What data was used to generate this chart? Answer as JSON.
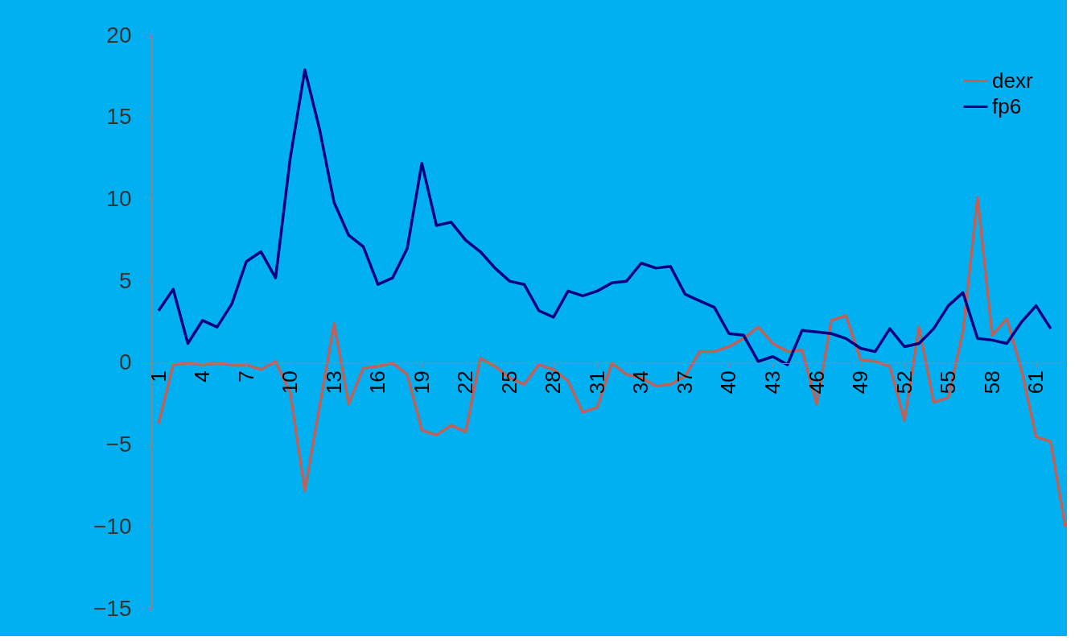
{
  "chart_data": {
    "type": "line",
    "categories": [
      "1",
      null,
      null,
      "4",
      null,
      null,
      "7",
      null,
      null,
      "10",
      null,
      null,
      "13",
      null,
      null,
      "16",
      null,
      null,
      "19",
      null,
      null,
      "22",
      null,
      null,
      "25",
      null,
      null,
      "28",
      null,
      null,
      "31",
      null,
      null,
      "34",
      null,
      null,
      "37",
      null,
      null,
      "40",
      null,
      null,
      "43",
      null,
      null,
      "46",
      null,
      null,
      "49",
      null,
      null,
      "52",
      null,
      null,
      "55",
      null,
      null,
      "58",
      null,
      null,
      "61",
      null,
      null
    ],
    "series": [
      {
        "name": "dexr",
        "color": "#c0605a",
        "values": [
          -3.7,
          -0.1,
          0.0,
          -0.1,
          0.0,
          -0.1,
          -0.1,
          -0.4,
          0.1,
          -1.8,
          -7.8,
          -2.7,
          2.4,
          -2.5,
          -0.3,
          -0.2,
          0.0,
          -0.7,
          -4.1,
          -4.4,
          -3.8,
          -4.2,
          0.3,
          -0.2,
          -0.9,
          -1.3,
          -0.1,
          -0.4,
          -1.1,
          -3.0,
          -2.7,
          0.0,
          -0.7,
          -0.9,
          -1.4,
          -1.3,
          -0.8,
          0.7,
          0.7,
          1.0,
          1.5,
          2.2,
          1.2,
          0.7,
          0.8,
          -2.5,
          2.6,
          2.9,
          0.2,
          0.1,
          -0.2,
          -3.5,
          2.2,
          -2.4,
          -2.1,
          1.9,
          10.1,
          1.7,
          2.7,
          -0.4,
          -4.5,
          -4.8,
          -10
        ]
      },
      {
        "name": "fp6",
        "color": "#000080",
        "values": [
          3.2,
          4.5,
          1.2,
          2.6,
          2.2,
          3.6,
          6.2,
          6.8,
          5.2,
          12.5,
          17.9,
          14.3,
          9.8,
          7.8,
          7.1,
          4.8,
          5.2,
          7.0,
          12.2,
          8.4,
          8.6,
          7.5,
          6.8,
          5.8,
          5.0,
          4.8,
          3.2,
          2.8,
          4.4,
          4.1,
          4.4,
          4.9,
          5.0,
          6.1,
          5.8,
          5.9,
          4.2,
          3.8,
          3.4,
          1.8,
          1.7,
          0.1,
          0.4,
          -0.1,
          2.0,
          1.9,
          1.8,
          1.5,
          0.9,
          0.7,
          2.1,
          1.0,
          1.2,
          2.1,
          3.5,
          4.3,
          1.5,
          1.4,
          1.2,
          2.5,
          3.5,
          2.1,
          null
        ]
      }
    ],
    "ylim": [
      -15,
      20
    ],
    "yticks": [
      -15,
      -10,
      -5,
      0,
      5,
      10,
      15,
      20
    ],
    "grid": false,
    "legend": "top right",
    "marker": "none",
    "line_style": "solid"
  }
}
